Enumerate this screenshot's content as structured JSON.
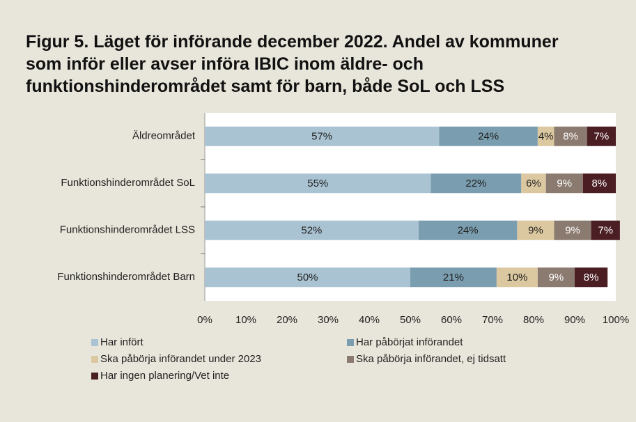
{
  "chart_data": {
    "type": "stacked-barh",
    "title": "Figur 5. Läget för införande december 2022. Andel av kommuner som inför eller avser införa IBIC inom äldre- och funktionshinderområdet samt för barn, både SoL och LSS",
    "categories": [
      "Äldreområdet",
      "Funktionshinderområdet SoL",
      "Funktionshinderområdet LSS",
      "Funktionshinderområdet Barn"
    ],
    "series": [
      {
        "name": "Har infört",
        "color": "#a9c3d2",
        "values": [
          57,
          55,
          52,
          50
        ],
        "value_labels": [
          "57%",
          "55%",
          "52%",
          "50%"
        ]
      },
      {
        "name": "Har påbörjat införandet",
        "color": "#7a9daf",
        "values": [
          24,
          22,
          24,
          21
        ],
        "value_labels": [
          "24%",
          "22%",
          "24%",
          "21%"
        ]
      },
      {
        "name": "Ska påbörja införandet under 2023",
        "color": "#dcc8a0",
        "values": [
          4,
          6,
          9,
          10
        ],
        "value_labels": [
          "4%",
          "6%",
          "9%",
          "10%"
        ]
      },
      {
        "name": "Ska påbörja införandet, ej tidsatt",
        "color": "#8b7a6f",
        "values": [
          8,
          9,
          9,
          9
        ],
        "value_labels": [
          "8%",
          "9%",
          "9%",
          "9%"
        ]
      },
      {
        "name": "Har ingen planering/Vet inte",
        "color": "#4b1e24",
        "values": [
          7,
          8,
          7,
          8
        ],
        "value_labels": [
          "7%",
          "8%",
          "7%",
          "8%"
        ]
      }
    ],
    "xlim": [
      0,
      100
    ],
    "xticks": [
      {
        "value": 0,
        "label": "0%"
      },
      {
        "value": 10,
        "label": "10%"
      },
      {
        "value": 20,
        "label": "20%"
      },
      {
        "value": 30,
        "label": "30%"
      },
      {
        "value": 40,
        "label": "40%"
      },
      {
        "value": 50,
        "label": "50%"
      },
      {
        "value": 60,
        "label": "60%"
      },
      {
        "value": 70,
        "label": "70%"
      },
      {
        "value": 80,
        "label": "80%"
      },
      {
        "value": 90,
        "label": "90%"
      },
      {
        "value": 100,
        "label": "100%"
      }
    ],
    "legend": "bottom"
  }
}
